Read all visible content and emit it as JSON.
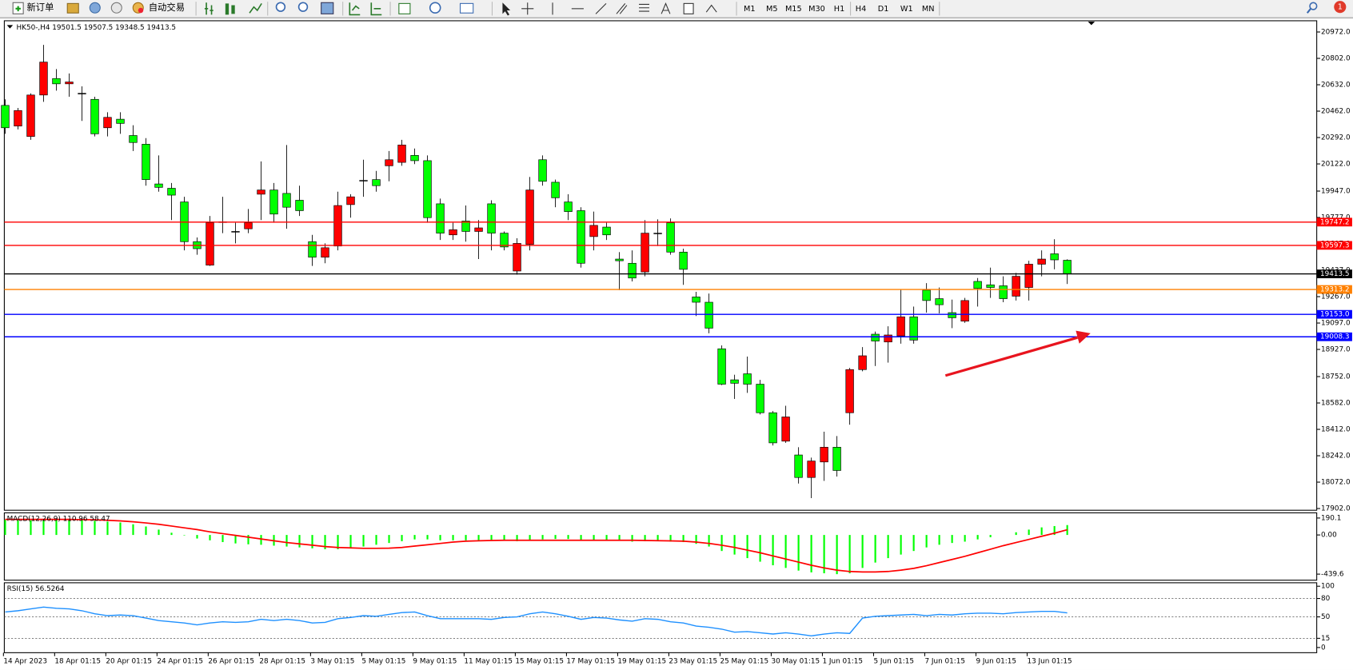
{
  "toolbar": {
    "new_order": "新订单",
    "auto_trading": "自动交易",
    "timeframes": [
      "M1",
      "M5",
      "M15",
      "M30",
      "H1",
      "H4",
      "D1",
      "W1",
      "MN"
    ],
    "notifications": 1
  },
  "chart_data": [
    {
      "type": "candlestick",
      "title": "HK50-,H4  19501.5 19507.5 19348.5 19413.5",
      "up_color": "#ff0000",
      "down_color": "#00ff00",
      "categories": [
        "14 Apr 2023",
        null,
        null,
        null,
        "18 Apr 01:15",
        null,
        null,
        null,
        "20 Apr 01:15",
        null,
        null,
        null,
        "24 Apr 01:15",
        null,
        null,
        null,
        "26 Apr 01:15",
        null,
        null,
        null,
        "28 Apr 01:15",
        null,
        null,
        null,
        "3 May 01:15",
        null,
        null,
        null,
        "5 May 01:15",
        null,
        null,
        null,
        "9 May 01:15",
        null,
        null,
        null,
        "11 May 01:15",
        null,
        null,
        null,
        "15 May 01:15",
        null,
        null,
        null,
        "17 May 01:15",
        null,
        null,
        null,
        "19 May 01:15",
        null,
        null,
        null,
        "23 May 01:15",
        null,
        null,
        null,
        "25 May 01:15",
        null,
        null,
        null,
        "30 May 01:15",
        null,
        null,
        null,
        "1 Jun 01:15",
        null,
        null,
        null,
        "5 Jun 01:15",
        null,
        null,
        null,
        "7 Jun 01:15",
        null,
        null,
        null,
        "9 Jun 01:15",
        null,
        null,
        null,
        "13 Jun 01:15",
        null,
        null,
        null
      ],
      "open": [
        20499,
        20366,
        20299,
        20566,
        20672,
        20638,
        20577,
        20538,
        20355,
        20410,
        20305,
        20249,
        19993,
        19965,
        19877,
        19621,
        19470,
        19749,
        19687,
        19704,
        19927,
        19954,
        19932,
        19888,
        19621,
        19521,
        19593,
        19860,
        20016,
        20021,
        20110,
        20132,
        20177,
        20143,
        19865,
        19665,
        19754,
        19687,
        19865,
        19676,
        19432,
        19604,
        20149,
        20004,
        19877,
        19821,
        19654,
        19715,
        19509,
        19482,
        19426,
        19676,
        19743,
        19554,
        19265,
        19231,
        18931,
        18731,
        18770,
        18703,
        18519,
        18336,
        18247,
        18102,
        18202,
        18297,
        18519,
        18797,
        19025,
        18975,
        19014,
        19137,
        19309,
        19254,
        19164,
        19109,
        19365,
        19343,
        19337,
        19270,
        19326,
        19476,
        19543,
        19501.5
      ],
      "high": [
        20538,
        20483,
        20577,
        20889,
        20733,
        20705,
        20622,
        20555,
        20455,
        20455,
        20371,
        20288,
        20177,
        19999,
        19910,
        19648,
        19787,
        19910,
        19743,
        19832,
        20138,
        19999,
        20244,
        19982,
        19665,
        19610,
        19943,
        19927,
        20149,
        20077,
        20205,
        20277,
        20221,
        20177,
        19899,
        19743,
        19854,
        19760,
        19888,
        19687,
        19643,
        20038,
        20177,
        20021,
        19927,
        19843,
        19815,
        19743,
        19554,
        19565,
        19760,
        19765,
        19771,
        19576,
        19298,
        19287,
        18953,
        18764,
        18881,
        18731,
        18530,
        18564,
        18297,
        18230,
        18397,
        18369,
        18808,
        18942,
        19042,
        19076,
        19315,
        19203,
        19354,
        19326,
        19248,
        19259,
        19387,
        19454,
        19398,
        19420,
        19498,
        19565,
        19637,
        19507.5
      ],
      "low": [
        20316,
        20344,
        20277,
        20522,
        20594,
        20555,
        20399,
        20299,
        20299,
        20316,
        20205,
        19982,
        19943,
        19760,
        19565,
        19537,
        19465,
        19676,
        19610,
        19676,
        19760,
        19743,
        19704,
        19787,
        19465,
        19482,
        19565,
        19776,
        19910,
        19943,
        20010,
        20110,
        20121,
        19743,
        19632,
        19632,
        19621,
        19509,
        19565,
        19565,
        19409,
        19565,
        19982,
        19843,
        19760,
        19454,
        19565,
        19632,
        19309,
        19365,
        19398,
        19593,
        19537,
        19343,
        19142,
        19031,
        18697,
        18608,
        18647,
        18508,
        18308,
        18325,
        18063,
        17969,
        18080,
        18108,
        18442,
        18786,
        18820,
        18842,
        18964,
        18964,
        19164,
        19159,
        19064,
        19098,
        19203,
        19259,
        19231,
        19242,
        19242,
        19398,
        19443,
        19348.5
      ],
      "close": [
        20355,
        20466,
        20566,
        20778,
        20638,
        20650,
        20577,
        20316,
        20422,
        20383,
        20260,
        20021,
        19971,
        19921,
        19621,
        19576,
        19743,
        19749,
        19687,
        19743,
        19954,
        19799,
        19843,
        19821,
        19521,
        19582,
        19854,
        19910,
        20016,
        19982,
        20149,
        20244,
        20143,
        19776,
        19676,
        19698,
        19687,
        19710,
        19676,
        19587,
        19610,
        19954,
        20010,
        19904,
        19815,
        19482,
        19726,
        19665,
        19498,
        19387,
        19676,
        19676,
        19554,
        19443,
        19231,
        19064,
        18703,
        18709,
        18703,
        18519,
        18325,
        18492,
        18102,
        18208,
        18297,
        18147,
        18797,
        18886,
        18981,
        19020,
        19137,
        18987,
        19242,
        19215,
        19131,
        19242,
        19320,
        19326,
        19254,
        19398,
        19476,
        19509,
        19504,
        19413.5
      ],
      "ylim": [
        17902,
        20972
      ],
      "yticks": [
        {
          "value": 20972,
          "label": "20972.0"
        },
        {
          "value": 20802,
          "label": "20802.0"
        },
        {
          "value": 20632,
          "label": "20632.0"
        },
        {
          "value": 20462,
          "label": "20462.0"
        },
        {
          "value": 20292,
          "label": "20292.0"
        },
        {
          "value": 20122,
          "label": "20122.0"
        },
        {
          "value": 19947,
          "label": "19947.0"
        },
        {
          "value": 19777,
          "label": "19777.0"
        },
        {
          "value": 19607,
          "label": "19607.0"
        },
        {
          "value": 19437,
          "label": "19437.0"
        },
        {
          "value": 19267,
          "label": "19267.0"
        },
        {
          "value": 19097,
          "label": "19097.0"
        },
        {
          "value": 18927,
          "label": "18927.0"
        },
        {
          "value": 18752,
          "label": "18752.0"
        },
        {
          "value": 18582,
          "label": "18582.0"
        },
        {
          "value": 18412,
          "label": "18412.0"
        },
        {
          "value": 18242,
          "label": "18242.0"
        },
        {
          "value": 18072,
          "label": "18072.0"
        },
        {
          "value": 17902,
          "label": "17902.0"
        }
      ],
      "hlines": [
        {
          "value": 19747.2,
          "label": "19747.2",
          "color": "#ff0000"
        },
        {
          "value": 19597.3,
          "label": "19597.3",
          "color": "#ff0000"
        },
        {
          "value": 19313.2,
          "label": "19313.2",
          "color": "#ff8000"
        },
        {
          "value": 19153,
          "label": "19153.0",
          "color": "#0000ff"
        },
        {
          "value": 19008.3,
          "label": "19008.3",
          "color": "#0000ff"
        },
        {
          "value": 19413.5,
          "label": "19413.5",
          "color": "#000000"
        }
      ]
    },
    {
      "type": "combo",
      "title": "MACD(12,26,9) 110.96 58.47",
      "series": [
        {
          "type": "bar",
          "color": "#00ff00",
          "values": [
            170,
            165,
            165,
            175,
            178,
            175,
            170,
            160,
            150,
            140,
            120,
            95,
            60,
            25,
            -5,
            -40,
            -60,
            -80,
            -95,
            -105,
            -110,
            -120,
            -130,
            -140,
            -150,
            -160,
            -160,
            -150,
            -130,
            -110,
            -90,
            -70,
            -50,
            -50,
            -60,
            -60,
            -60,
            -60,
            -60,
            -65,
            -70,
            -60,
            -50,
            -45,
            -45,
            -55,
            -60,
            -60,
            -65,
            -75,
            -70,
            -70,
            -75,
            -80,
            -100,
            -130,
            -180,
            -220,
            -260,
            -300,
            -340,
            -370,
            -400,
            -420,
            -430,
            -440,
            -430,
            -370,
            -310,
            -260,
            -220,
            -180,
            -140,
            -110,
            -90,
            -75,
            -50,
            -25,
            0,
            30,
            60,
            85,
            100,
            110.96
          ]
        },
        {
          "type": "line",
          "color": "#ff0000",
          "values": [
            175,
            175,
            175,
            175,
            175,
            175,
            172,
            170,
            165,
            158,
            148,
            135,
            120,
            100,
            80,
            60,
            35,
            15,
            -5,
            -25,
            -45,
            -65,
            -85,
            -100,
            -115,
            -130,
            -140,
            -145,
            -150,
            -150,
            -148,
            -140,
            -125,
            -110,
            -95,
            -80,
            -70,
            -65,
            -62,
            -60,
            -60,
            -60,
            -60,
            -60,
            -60,
            -60,
            -60,
            -60,
            -60,
            -60,
            -62,
            -64,
            -66,
            -70,
            -80,
            -95,
            -115,
            -140,
            -170,
            -200,
            -235,
            -270,
            -305,
            -340,
            -370,
            -395,
            -410,
            -415,
            -415,
            -410,
            -395,
            -375,
            -345,
            -310,
            -275,
            -240,
            -200,
            -160,
            -120,
            -85,
            -50,
            -15,
            20,
            58.47
          ]
        }
      ],
      "ylim": [
        -439.6,
        190.1
      ],
      "yticks": [
        190.1,
        {
          "value": 0,
          "label": "0.00"
        },
        -439.6
      ]
    },
    {
      "type": "line",
      "title": "RSI(15) 56.5264",
      "color": "#1e90ff",
      "values": [
        58,
        60,
        63,
        66,
        64,
        63,
        60,
        55,
        52,
        53,
        52,
        48,
        44,
        42,
        40,
        37,
        40,
        42,
        41,
        42,
        46,
        44,
        46,
        44,
        40,
        41,
        47,
        49,
        52,
        51,
        54,
        57,
        58,
        52,
        47,
        47,
        47,
        47,
        46,
        49,
        50,
        55,
        58,
        55,
        51,
        46,
        49,
        48,
        45,
        43,
        47,
        46,
        42,
        40,
        35,
        33,
        30,
        25,
        26,
        24,
        22,
        24,
        22,
        19,
        22,
        24,
        23,
        48,
        51,
        52,
        53,
        54,
        52,
        54,
        53,
        55,
        56,
        56,
        55,
        57,
        58,
        59,
        59,
        56.5264
      ],
      "ylim": [
        0,
        100
      ],
      "yticks": [
        100,
        80,
        50,
        15,
        0
      ],
      "levels": [
        80,
        50,
        15
      ]
    }
  ]
}
